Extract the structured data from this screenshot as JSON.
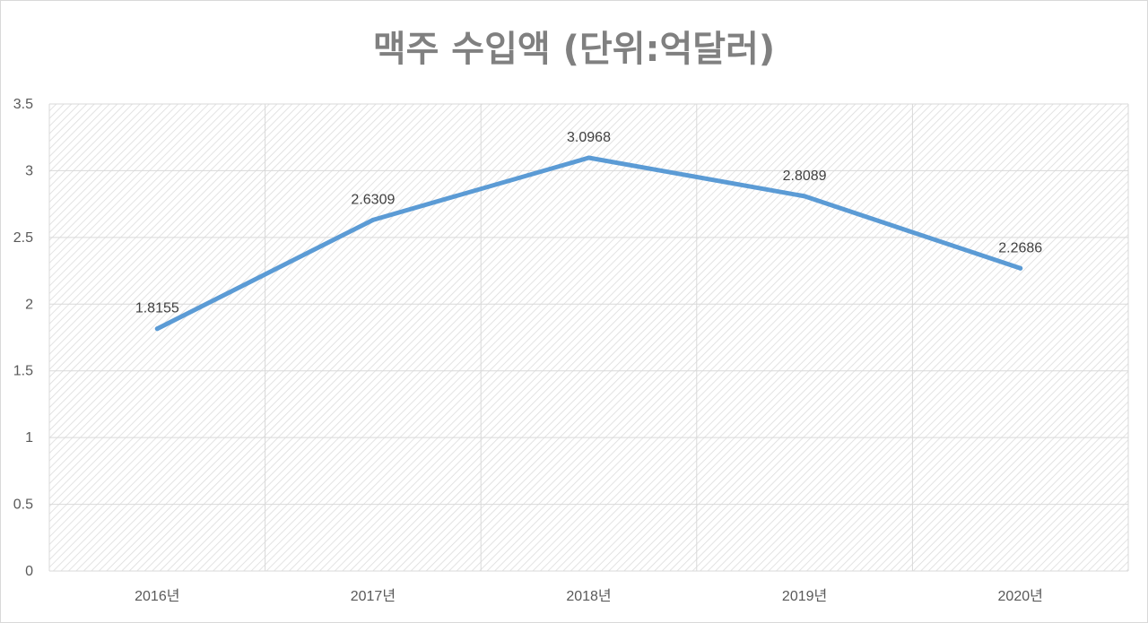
{
  "chart_data": {
    "type": "line",
    "title": "맥주 수입액 (단위:억달러)",
    "categories": [
      "2016년",
      "2017년",
      "2018년",
      "2019년",
      "2020년"
    ],
    "series": [
      {
        "values": [
          1.8155,
          2.6309,
          3.0968,
          2.8089,
          2.2686
        ],
        "color": "#5b9bd5"
      }
    ],
    "data_labels": [
      "1.8155",
      "2.6309",
      "3.0968",
      "2.8089",
      "2.2686"
    ],
    "ylim": [
      0,
      3.5
    ],
    "yticks": [
      "0",
      "0.5",
      "1",
      "1.5",
      "2",
      "2.5",
      "3",
      "3.5"
    ],
    "xlabel": "",
    "ylabel": "",
    "grid": true,
    "legend": "none",
    "plot_fill": "diagonal-hatch-gray"
  }
}
